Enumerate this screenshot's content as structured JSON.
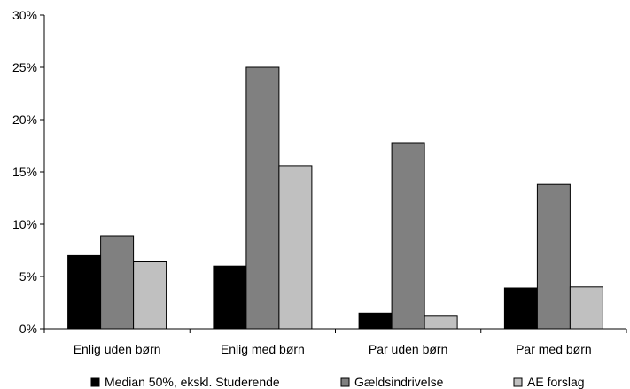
{
  "chart_data": {
    "type": "bar",
    "categories": [
      "Enlig uden børn",
      "Enlig med børn",
      "Par uden børn",
      "Par med børn"
    ],
    "series": [
      {
        "name": "Median 50%, ekskl. Studerende",
        "color": "#000000",
        "values": [
          7.0,
          6.0,
          1.5,
          3.9
        ]
      },
      {
        "name": "Gældsindrivelse",
        "color": "#808080",
        "values": [
          8.9,
          25.0,
          17.8,
          13.8
        ]
      },
      {
        "name": "AE forslag",
        "color": "#c0c0c0",
        "values": [
          6.4,
          15.6,
          1.2,
          4.0
        ]
      }
    ],
    "ylim": [
      0,
      30
    ],
    "yticks": [
      0,
      5,
      10,
      15,
      20,
      25,
      30
    ],
    "ytick_labels": [
      "0%",
      "5%",
      "10%",
      "15%",
      "20%",
      "25%",
      "30%"
    ],
    "grid": false,
    "legend_position": "bottom"
  }
}
